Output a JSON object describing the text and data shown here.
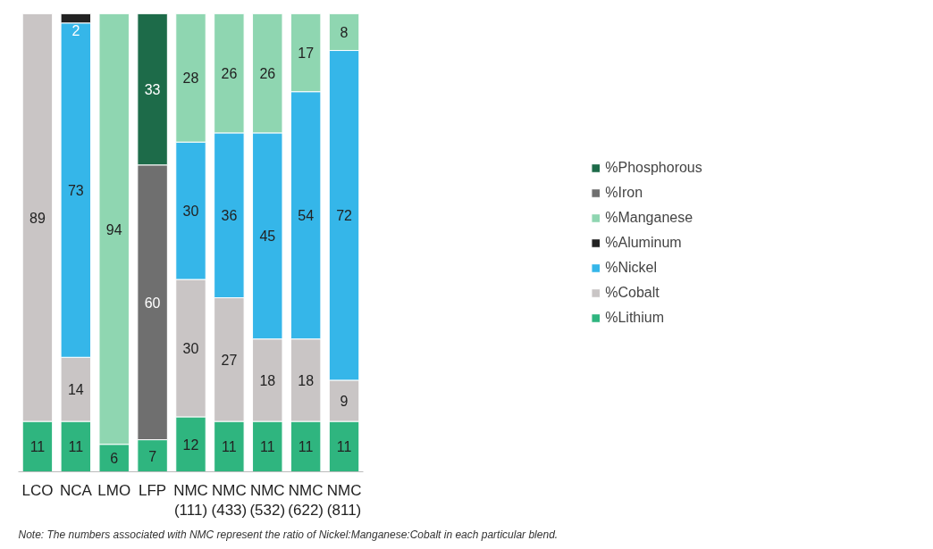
{
  "chart_data": {
    "type": "bar",
    "stacked": true,
    "data_labels": true,
    "legend": "right",
    "grid": false,
    "tick_labels": "x",
    "categories": [
      "LCO",
      "NCA",
      "LMO",
      "LFP",
      "NMC\n(111)",
      "NMC\n(433)",
      "NMC\n(532)",
      "NMC\n(622)",
      "NMC\n(811)"
    ],
    "series": [
      {
        "name": "%Lithium",
        "color": "#2fb57f",
        "values": [
          11,
          11,
          6,
          7,
          12,
          11,
          11,
          11,
          11
        ]
      },
      {
        "name": "%Cobalt",
        "color": "#c9c5c5",
        "values": [
          89,
          14,
          null,
          null,
          30,
          27,
          18,
          18,
          9
        ]
      },
      {
        "name": "%Nickel",
        "color": "#35b6e9",
        "values": [
          null,
          73,
          null,
          null,
          30,
          36,
          45,
          54,
          72
        ]
      },
      {
        "name": "%Aluminum",
        "color": "#222222",
        "values": [
          null,
          2,
          null,
          null,
          null,
          null,
          null,
          null,
          null
        ]
      },
      {
        "name": "%Manganese",
        "color": "#8fd6b1",
        "values": [
          null,
          null,
          94,
          null,
          28,
          26,
          26,
          17,
          8
        ]
      },
      {
        "name": "%Iron",
        "color": "#6f6f6f",
        "values": [
          null,
          null,
          null,
          60,
          null,
          null,
          null,
          null,
          null
        ]
      },
      {
        "name": "%Phosphorous",
        "color": "#1d6b49",
        "values": [
          null,
          null,
          null,
          33,
          null,
          null,
          null,
          null,
          null
        ]
      }
    ],
    "annotations": [
      "Note: The numbers associated with NMC represent the ratio of Nickel:Manganese:Cobalt in each particular blend."
    ]
  }
}
